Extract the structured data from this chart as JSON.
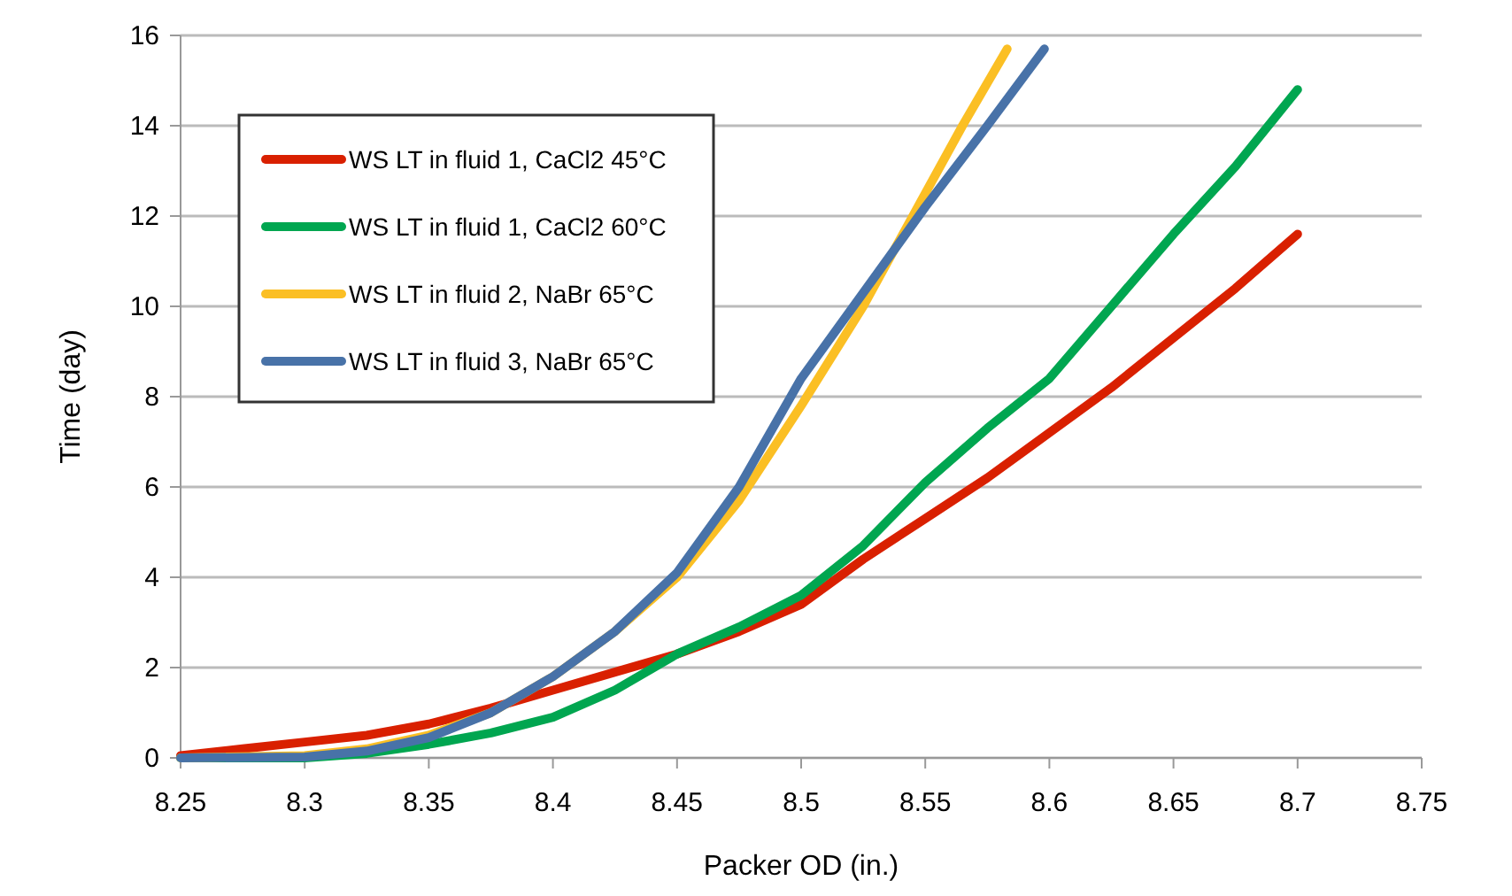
{
  "chart_data": {
    "type": "line",
    "xlabel": "Packer OD (in.)",
    "ylabel": "Time (day)",
    "xlim": [
      8.25,
      8.75
    ],
    "xticks": [
      8.25,
      8.3,
      8.35,
      8.4,
      8.45,
      8.5,
      8.55,
      8.6,
      8.65,
      8.7,
      8.75
    ],
    "ylim": [
      0,
      16
    ],
    "yticks": [
      0,
      2,
      4,
      6,
      8,
      10,
      12,
      14,
      16
    ],
    "grid": "y",
    "legend": "top left",
    "series": [
      {
        "name": "WS LT in fluid 1, CaCl2 45°C",
        "color": "#d92000",
        "x": [
          8.25,
          8.275,
          8.3,
          8.325,
          8.35,
          8.375,
          8.4,
          8.425,
          8.45,
          8.475,
          8.5,
          8.525,
          8.55,
          8.575,
          8.6,
          8.625,
          8.65,
          8.675,
          8.7
        ],
        "values": [
          0.05,
          0.2,
          0.35,
          0.5,
          0.75,
          1.1,
          1.5,
          1.9,
          2.3,
          2.8,
          3.4,
          4.4,
          5.3,
          6.2,
          7.2,
          8.2,
          9.3,
          10.4,
          11.6
        ]
      },
      {
        "name": "WS LT in fluid 1, CaCl2 60°C",
        "color": "#00a650",
        "x": [
          8.25,
          8.3,
          8.325,
          8.35,
          8.375,
          8.4,
          8.425,
          8.45,
          8.475,
          8.5,
          8.525,
          8.55,
          8.575,
          8.6,
          8.625,
          8.65,
          8.675,
          8.7
        ],
        "values": [
          0,
          0,
          0.1,
          0.3,
          0.55,
          0.9,
          1.5,
          2.3,
          2.9,
          3.6,
          4.7,
          6.1,
          7.3,
          8.4,
          10.0,
          11.6,
          13.1,
          14.8
        ]
      },
      {
        "name": "WS LT in fluid 2, NaBr 65°C",
        "color": "#fbbf24",
        "x": [
          8.25,
          8.3,
          8.325,
          8.35,
          8.375,
          8.4,
          8.425,
          8.45,
          8.475,
          8.5,
          8.525,
          8.55,
          8.565,
          8.583
        ],
        "values": [
          0,
          0.05,
          0.2,
          0.5,
          1.0,
          1.8,
          2.8,
          4.0,
          5.7,
          7.8,
          10.0,
          12.5,
          14.0,
          15.7
        ]
      },
      {
        "name": "WS LT in fluid 3, NaBr 65°C",
        "color": "#4872a8",
        "x": [
          8.25,
          8.3,
          8.325,
          8.35,
          8.375,
          8.4,
          8.425,
          8.45,
          8.475,
          8.5,
          8.525,
          8.55,
          8.575,
          8.598
        ],
        "values": [
          0,
          0.02,
          0.15,
          0.45,
          1.0,
          1.8,
          2.8,
          4.1,
          6.0,
          8.4,
          10.3,
          12.2,
          14.0,
          15.7
        ]
      }
    ]
  }
}
